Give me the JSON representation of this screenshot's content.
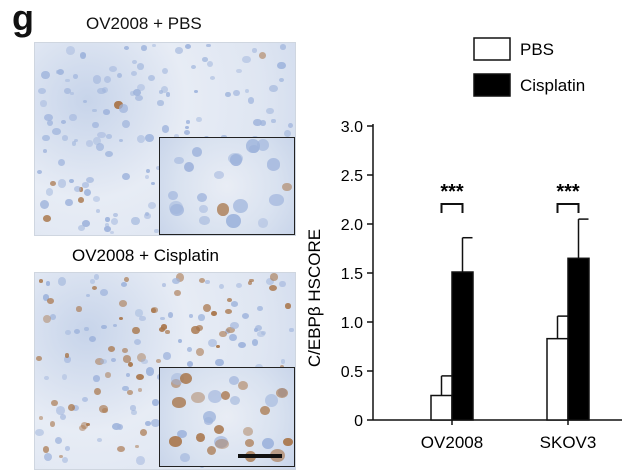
{
  "panel_label": "g",
  "images": {
    "top_title": "OV2008 + PBS",
    "bottom_title": "OV2008 + Cisplatin"
  },
  "colors": {
    "pbs_fill": "#ffffff",
    "cisplatin_fill": "#000000",
    "tissue_blue": "#9fb4dc",
    "stain_brown": "#a8754a"
  },
  "chart_data": {
    "type": "bar",
    "categories": [
      "OV2008",
      "SKOV3"
    ],
    "series": [
      {
        "name": "PBS",
        "values": [
          0.25,
          0.83
        ],
        "errors": [
          0.2,
          0.23
        ],
        "color": "#ffffff"
      },
      {
        "name": "Cisplatin",
        "values": [
          1.51,
          1.65
        ],
        "errors": [
          0.35,
          0.4
        ],
        "color": "#000000"
      }
    ],
    "ylabel": "C/EBPβ HSCORE",
    "ylim": [
      0,
      3.0
    ],
    "yticks": [
      "0",
      "0.5",
      "1.0",
      "1.5",
      "2.0",
      "2.5",
      "3.0"
    ],
    "significance": [
      "***",
      "***"
    ],
    "legend": "top-right",
    "grid": false
  }
}
